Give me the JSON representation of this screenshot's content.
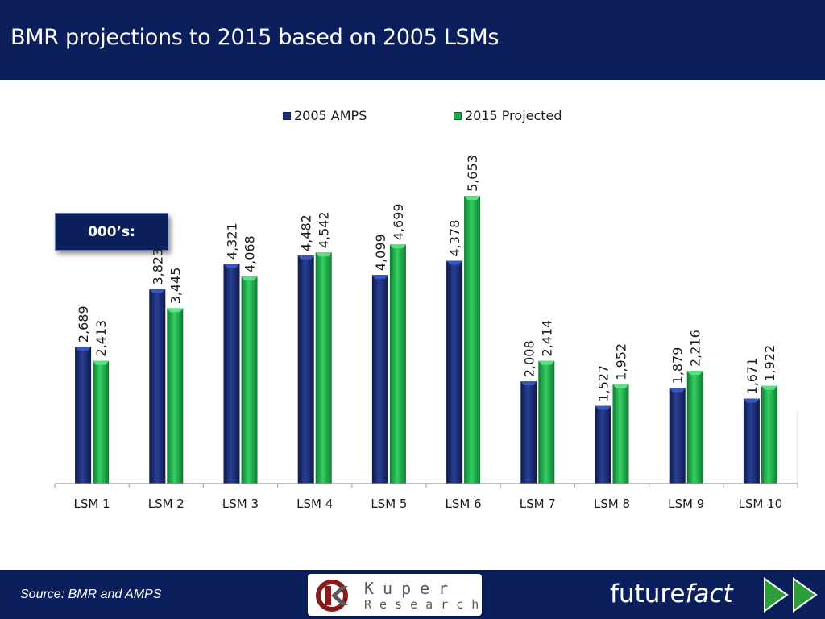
{
  "header": {
    "title": "BMR projections to 2015 based on 2005 LSMs"
  },
  "units_label": "000’s:",
  "legend": [
    {
      "label": "2005 AMPS",
      "color": "#1b2f7a"
    },
    {
      "label": "2015 Projected",
      "color": "#1fa84a"
    }
  ],
  "chart_data": {
    "type": "bar",
    "categories": [
      "LSM 1",
      "LSM 2",
      "LSM 3",
      "LSM 4",
      "LSM 5",
      "LSM 6",
      "LSM 7",
      "LSM 8",
      "LSM 9",
      "LSM 10"
    ],
    "series": [
      {
        "name": "2005 AMPS",
        "values": [
          2689,
          3823,
          4321,
          4482,
          4099,
          4378,
          2008,
          1527,
          1879,
          1671
        ],
        "labels": [
          "2,689",
          "3,823",
          "4,321",
          "4,482",
          "4,099",
          "4,378",
          "2,008",
          "1,527",
          "1,879",
          "1,671"
        ]
      },
      {
        "name": "2015 Projected",
        "values": [
          2413,
          3445,
          4068,
          4542,
          4699,
          5653,
          2414,
          1952,
          2216,
          1922
        ],
        "labels": [
          "2,413",
          "3,445",
          "4,068",
          "4,542",
          "4,699",
          "5,653",
          "2,414",
          "1,952",
          "2,216",
          "1,922"
        ]
      }
    ],
    "ylim": [
      0,
      9500
    ],
    "grid": false,
    "legend_position": "top"
  },
  "footer": {
    "source": "Source: BMR and AMPS",
    "logo_line1": "Kuper",
    "logo_line2": "Research",
    "brand_regular": "future",
    "brand_italic": "fact"
  }
}
